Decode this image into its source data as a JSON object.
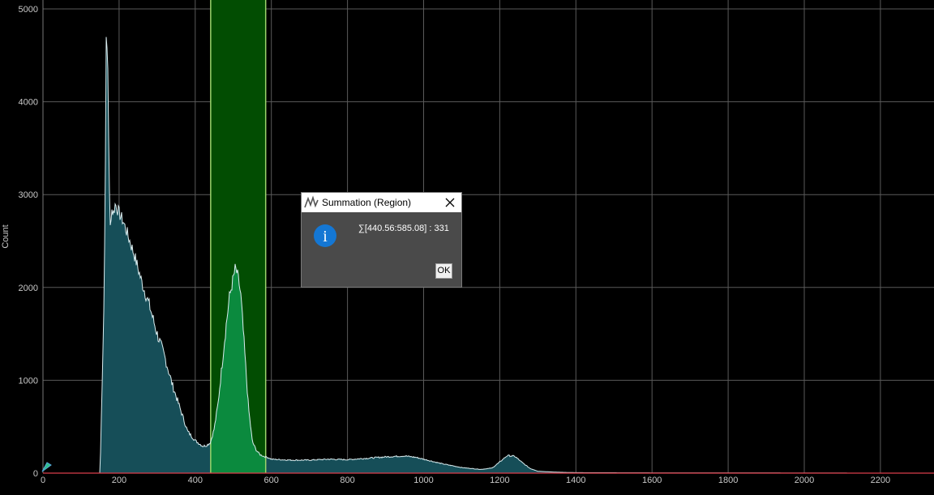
{
  "dialog": {
    "title": "Summation (Region)",
    "app_icon": "waveform-app-icon",
    "info_icon": "info-icon",
    "info_glyph": "i",
    "message": "∑[440.56:585.08] : 331",
    "ok_label": "OK"
  },
  "colors": {
    "background": "#000000",
    "grid": "#5a5a5a",
    "histogram_fill": "#164e58",
    "histogram_outline": "#d9ecef",
    "region_fill": "#024d02",
    "region_border": "#9bd46b",
    "region_peak_fill": "#0b8a3e",
    "baseline": "#d93c4a",
    "info_blue": "#1477d4"
  },
  "chart_data": {
    "type": "area",
    "title": "",
    "xlabel": "",
    "ylabel": "Count",
    "xlim": [
      0,
      2350
    ],
    "ylim": [
      0,
      5000
    ],
    "x_ticks": [
      "0",
      "200",
      "400",
      "600",
      "800",
      "1000",
      "1200",
      "1400",
      "1600",
      "1800",
      "2000",
      "2200"
    ],
    "y_ticks": [
      "0",
      "1000",
      "2000",
      "3000",
      "4000",
      "5000"
    ],
    "grid": true,
    "selected_region": [
      440.56,
      585.08
    ],
    "series": [
      {
        "x": [
          0,
          150,
          160,
          163,
          166,
          170,
          173,
          176,
          180,
          185,
          190,
          195,
          200,
          210,
          220,
          240,
          260,
          280,
          300,
          320,
          340,
          360,
          380,
          400,
          420,
          430,
          440,
          450,
          460,
          470,
          480,
          490,
          500,
          505,
          510,
          515,
          520,
          530,
          540,
          550,
          560,
          570,
          580,
          590,
          600,
          650,
          700,
          750,
          800,
          850,
          900,
          950,
          980,
          1000,
          1050,
          1100,
          1150,
          1180,
          1200,
          1220,
          1240,
          1260,
          1280,
          1300,
          1350,
          1400,
          1600,
          1800,
          2000,
          2200,
          2350
        ],
        "values": [
          0,
          0,
          1800,
          2800,
          4650,
          4500,
          3500,
          2600,
          2850,
          2800,
          2900,
          2850,
          2800,
          2720,
          2600,
          2350,
          2050,
          1800,
          1500,
          1250,
          950,
          700,
          450,
          350,
          290,
          300,
          330,
          480,
          750,
          1150,
          1550,
          1900,
          2100,
          2200,
          2150,
          2050,
          1900,
          1300,
          700,
          340,
          250,
          200,
          180,
          170,
          150,
          140,
          140,
          150,
          145,
          160,
          175,
          185,
          170,
          150,
          100,
          60,
          40,
          55,
          120,
          190,
          180,
          110,
          50,
          20,
          10,
          5,
          3,
          2,
          1,
          0,
          0
        ]
      }
    ]
  }
}
